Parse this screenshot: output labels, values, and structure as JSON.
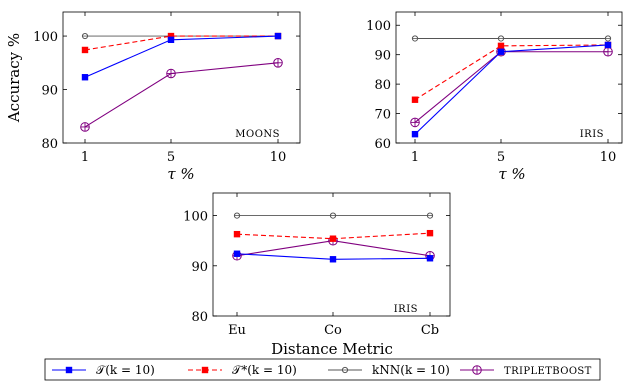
{
  "colors": {
    "tau": "#0000ff",
    "tau_star": "#ff0000",
    "knn": "#555555",
    "tripletboost": "#800080"
  },
  "chart_data": [
    {
      "type": "line",
      "panel_tag": "MOONS",
      "xlabel": "τ %",
      "ylabel": "Accuracy %",
      "categories": [
        "1",
        "5",
        "10"
      ],
      "ylim": [
        80,
        104.5
      ],
      "yticks": [
        "80",
        "90",
        "100"
      ],
      "grid": false,
      "series": [
        {
          "key": "tau",
          "values": [
            92.3,
            99.3,
            100.0
          ]
        },
        {
          "key": "tau_star",
          "values": [
            97.4,
            100.0,
            100.0
          ]
        },
        {
          "key": "knn",
          "values": [
            100.0,
            100.0,
            100.0
          ]
        },
        {
          "key": "tripletboost",
          "values": [
            83.0,
            93.0,
            95.0
          ]
        }
      ]
    },
    {
      "type": "line",
      "panel_tag": "IRIS",
      "xlabel": "τ %",
      "ylabel": "",
      "categories": [
        "1",
        "5",
        "10"
      ],
      "ylim": [
        60,
        104.5
      ],
      "yticks": [
        "60",
        "70",
        "80",
        "90",
        "100"
      ],
      "grid": false,
      "series": [
        {
          "key": "tau",
          "values": [
            63.0,
            91.0,
            93.3
          ]
        },
        {
          "key": "tau_star",
          "values": [
            74.7,
            93.0,
            93.3
          ]
        },
        {
          "key": "knn",
          "values": [
            95.5,
            95.5,
            95.5
          ]
        },
        {
          "key": "tripletboost",
          "values": [
            67.0,
            91.0,
            91.0
          ]
        }
      ]
    },
    {
      "type": "line",
      "panel_tag": "IRIS",
      "xlabel": "Distance Metric",
      "ylabel": "",
      "categories": [
        "Eu",
        "Co",
        "Cb"
      ],
      "ylim": [
        80,
        104.5
      ],
      "yticks": [
        "80",
        "90",
        "100"
      ],
      "grid": false,
      "series": [
        {
          "key": "tau",
          "values": [
            92.4,
            91.3,
            91.5
          ]
        },
        {
          "key": "tau_star",
          "values": [
            96.3,
            95.4,
            96.5
          ]
        },
        {
          "key": "knn",
          "values": [
            100.0,
            100.0,
            100.0
          ]
        },
        {
          "key": "tripletboost",
          "values": [
            92.0,
            95.0,
            92.0
          ]
        }
      ]
    }
  ],
  "legend": [
    {
      "key": "tau",
      "label": "𝒯(k = 10)",
      "small_caps": false
    },
    {
      "key": "tau_star",
      "label": "𝒯*(k = 10)",
      "small_caps": false
    },
    {
      "key": "knn",
      "label": "kNN(k = 10)",
      "small_caps": false
    },
    {
      "key": "tripletboost",
      "label": "TRIPLETBOOST",
      "small_caps": true
    }
  ]
}
